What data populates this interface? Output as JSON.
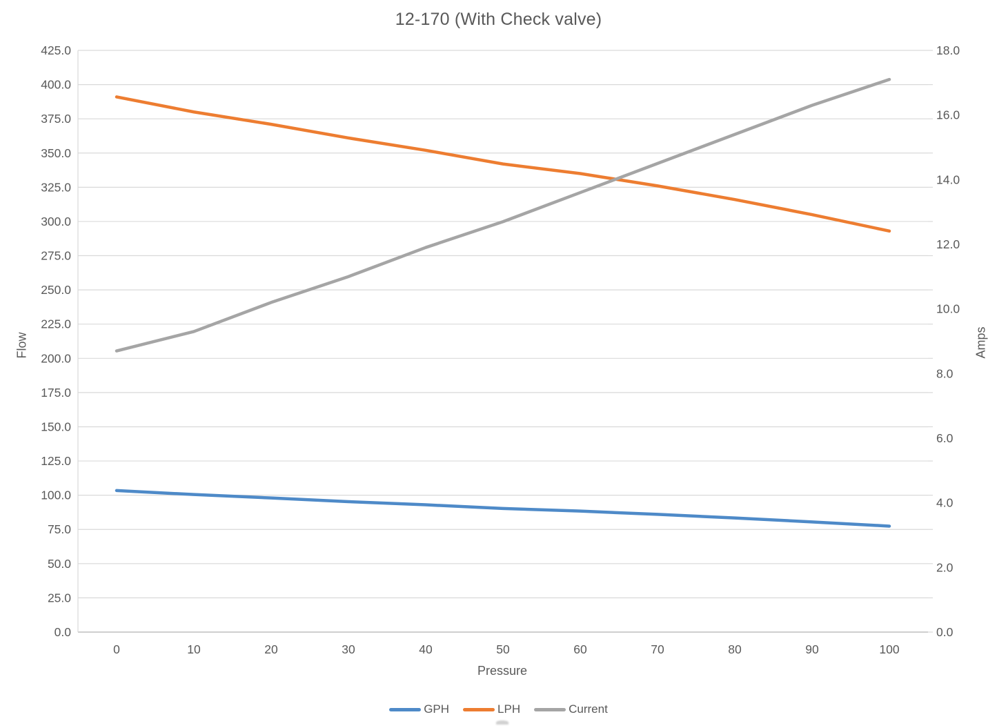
{
  "chart": {
    "title": "12-170 (With Check valve)",
    "x_axis_title": "Pressure",
    "y_left_axis_title": "Flow",
    "y_right_axis_title": "Amps"
  },
  "chart_data": {
    "type": "line",
    "title": "12-170 (With Check valve)",
    "xlabel": "Pressure",
    "ylabel_left": "Flow",
    "ylabel_right": "Amps",
    "grid": true,
    "legend_position": "bottom",
    "x": [
      0,
      10,
      20,
      30,
      40,
      50,
      60,
      70,
      80,
      90,
      100
    ],
    "x_tick_labels": [
      "0",
      "10",
      "20",
      "30",
      "40",
      "50",
      "60",
      "70",
      "80",
      "90",
      "100"
    ],
    "y_left_range": [
      0,
      425
    ],
    "y_left_tick_step": 25,
    "y_left_tick_labels": [
      "0.0",
      "25.0",
      "50.0",
      "75.0",
      "100.0",
      "125.0",
      "150.0",
      "175.0",
      "200.0",
      "225.0",
      "250.0",
      "275.0",
      "300.0",
      "325.0",
      "350.0",
      "375.0",
      "400.0",
      "425.0"
    ],
    "y_right_range": [
      0,
      18
    ],
    "y_right_tick_step": 2,
    "y_right_tick_labels": [
      "0.0",
      "2.0",
      "4.0",
      "6.0",
      "8.0",
      "10.0",
      "12.0",
      "14.0",
      "16.0",
      "18.0"
    ],
    "series": [
      {
        "name": "GPH",
        "axis": "left",
        "color": "#4E8AC8",
        "values": [
          103.4,
          100.5,
          98.0,
          95.3,
          93.0,
          90.3,
          88.4,
          86.0,
          83.4,
          80.5,
          77.4
        ]
      },
      {
        "name": "LPH",
        "axis": "left",
        "color": "#ED7D31",
        "values": [
          391,
          380,
          371,
          361,
          352,
          342,
          335,
          326,
          316,
          305,
          293
        ]
      },
      {
        "name": "Current",
        "axis": "right",
        "color": "#A5A5A5",
        "values": [
          8.7,
          9.3,
          10.2,
          11.0,
          11.9,
          12.7,
          13.6,
          14.5,
          15.4,
          16.3,
          17.1
        ]
      }
    ],
    "colors": {
      "grid": "#D9D9D9",
      "axis_line": "#BFBFBF",
      "text": "#595959"
    }
  }
}
